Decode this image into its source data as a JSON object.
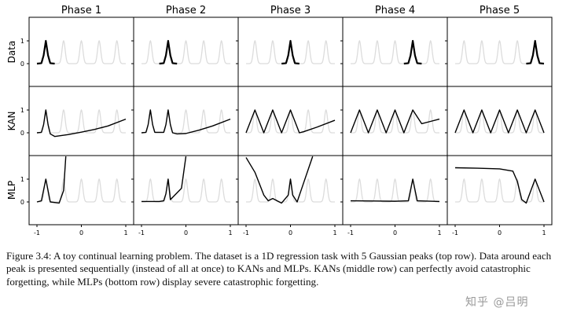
{
  "figure": {
    "phase_titles": [
      "Phase 1",
      "Phase 2",
      "Phase 3",
      "Phase 4",
      "Phase 5"
    ],
    "row_labels": [
      "Data",
      "KAN",
      "MLP"
    ],
    "y_ticks": [
      "1",
      "0"
    ],
    "x_ticks": [
      "-1",
      "0",
      "1"
    ]
  },
  "caption": "Figure 3.4: A toy continual learning problem. The dataset is a 1D regression task with 5 Gaussian peaks (top row). Data around each peak is presented sequentially (instead of all at once) to KANs and MLPs. KANs (middle row) can perfectly avoid catastrophic forgetting, while MLPs (bottom row) display severe catastrophic forgetting.",
  "watermark": "知乎 @吕明",
  "colors": {
    "active": "#000000",
    "ghost": "#dcdcdc",
    "frame": "#000000"
  },
  "chart_data": {
    "type": "line",
    "x_range": [
      -1,
      1
    ],
    "peaks": {
      "centers": [
        -0.8,
        -0.4,
        0.0,
        0.4,
        0.8
      ],
      "height": 1,
      "width_sigma": 0.035
    },
    "rows": [
      {
        "label": "Data",
        "panels": [
          {
            "phase": "Phase 1",
            "x": [
              -1,
              -0.9,
              -0.85,
              -0.8,
              -0.75,
              -0.7,
              -0.6
            ],
            "y": [
              0,
              0.02,
              0.36,
              1.0,
              0.36,
              0.02,
              0
            ]
          },
          {
            "phase": "Phase 2",
            "x": [
              -0.6,
              -0.5,
              -0.45,
              -0.4,
              -0.35,
              -0.3,
              -0.2
            ],
            "y": [
              0,
              0.02,
              0.36,
              1.0,
              0.36,
              0.02,
              0
            ]
          },
          {
            "phase": "Phase 3",
            "x": [
              -0.2,
              -0.1,
              -0.05,
              0.0,
              0.05,
              0.1,
              0.2
            ],
            "y": [
              0,
              0.02,
              0.36,
              1.0,
              0.36,
              0.02,
              0
            ]
          },
          {
            "phase": "Phase 4",
            "x": [
              0.2,
              0.3,
              0.35,
              0.4,
              0.45,
              0.5,
              0.6
            ],
            "y": [
              0,
              0.02,
              0.36,
              1.0,
              0.36,
              0.02,
              0
            ]
          },
          {
            "phase": "Phase 5",
            "x": [
              0.6,
              0.7,
              0.75,
              0.8,
              0.85,
              0.9,
              1.0
            ],
            "y": [
              0,
              0.02,
              0.36,
              1.0,
              0.36,
              0.02,
              0
            ]
          }
        ]
      },
      {
        "label": "KAN",
        "panels": [
          {
            "phase": "Phase 1",
            "x": [
              -1,
              -0.9,
              -0.85,
              -0.8,
              -0.75,
              -0.7,
              -0.6,
              -0.3,
              0,
              0.3,
              0.6,
              1.0
            ],
            "y": [
              0,
              0.02,
              0.36,
              1.0,
              0.36,
              -0.05,
              -0.16,
              -0.08,
              0.03,
              0.15,
              0.3,
              0.6
            ]
          },
          {
            "phase": "Phase 2",
            "x": [
              -1,
              -0.9,
              -0.85,
              -0.8,
              -0.75,
              -0.7,
              -0.5,
              -0.45,
              -0.4,
              -0.35,
              -0.3,
              -0.2,
              0,
              0.3,
              0.6,
              1.0
            ],
            "y": [
              0,
              0.02,
              0.36,
              1.0,
              0.36,
              0.02,
              0.02,
              0.36,
              1.0,
              0.36,
              0.0,
              -0.05,
              -0.03,
              0.12,
              0.3,
              0.6
            ]
          },
          {
            "phase": "Phase 3",
            "x": [
              -1,
              -0.8,
              -0.6,
              -0.4,
              -0.2,
              0.0,
              0.2,
              0.3,
              0.6,
              1.0
            ],
            "y": [
              0,
              1.0,
              0,
              1.0,
              0,
              1.0,
              0.0,
              0.05,
              0.25,
              0.55
            ]
          },
          {
            "phase": "Phase 4",
            "x": [
              -1,
              -0.8,
              -0.6,
              -0.4,
              -0.2,
              0.0,
              0.2,
              0.4,
              0.6,
              0.8,
              1.0
            ],
            "y": [
              0,
              1.0,
              0,
              1.0,
              0,
              1.0,
              0,
              1.0,
              0.4,
              0.5,
              0.6
            ]
          },
          {
            "phase": "Phase 5",
            "x": [
              -1,
              -0.8,
              -0.6,
              -0.4,
              -0.2,
              0.0,
              0.2,
              0.4,
              0.6,
              0.8,
              1.0
            ],
            "y": [
              0,
              1.0,
              0,
              1.0,
              0,
              1.0,
              0,
              1.0,
              0,
              1.0,
              0
            ]
          }
        ]
      },
      {
        "label": "MLP",
        "panels": [
          {
            "phase": "Phase 1",
            "x": [
              -1,
              -0.9,
              -0.8,
              -0.7,
              -0.5,
              -0.4,
              -0.35
            ],
            "y": [
              0.0,
              0.05,
              1.0,
              0.0,
              -0.05,
              0.5,
              2.0
            ]
          },
          {
            "phase": "Phase 2",
            "x": [
              -1,
              -0.6,
              -0.5,
              -0.45,
              -0.4,
              -0.35,
              -0.1,
              0.0
            ],
            "y": [
              0.02,
              0.02,
              0.05,
              0.36,
              1.0,
              0.1,
              0.6,
              2.0
            ]
          },
          {
            "phase": "Phase 3",
            "x": [
              -1,
              -0.8,
              -0.6,
              -0.5,
              -0.4,
              -0.2,
              -0.05,
              0.0,
              0.05,
              0.15,
              0.5
            ],
            "y": [
              1.95,
              1.3,
              0.3,
              0.05,
              0.15,
              -0.05,
              0.3,
              1.0,
              0.3,
              0.0,
              2.0
            ]
          },
          {
            "phase": "Phase 4",
            "x": [
              -1,
              -0.5,
              0.0,
              0.3,
              0.4,
              0.5,
              1.0
            ],
            "y": [
              0.05,
              0.04,
              0.03,
              0.05,
              1.0,
              0.05,
              0.02
            ]
          },
          {
            "phase": "Phase 5",
            "x": [
              -1,
              -0.5,
              0.0,
              0.3,
              0.4,
              0.5,
              0.6,
              0.8,
              1.0
            ],
            "y": [
              1.5,
              1.48,
              1.45,
              1.35,
              0.9,
              0.1,
              -0.05,
              1.0,
              0.0
            ]
          }
        ]
      }
    ],
    "ylim": [
      -0.5,
      2.0
    ],
    "grid": false,
    "legend": "none"
  }
}
